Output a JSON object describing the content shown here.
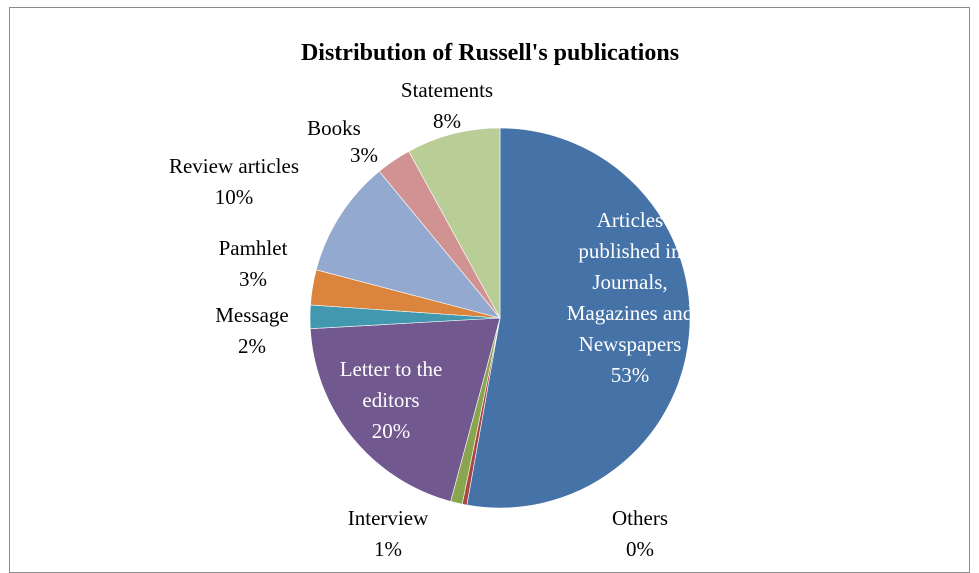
{
  "chart_data": {
    "type": "pie",
    "title": "Distribution of Russell's publications",
    "slices": [
      {
        "name": "Articles published in Journals, Magazines and Newspapers",
        "label_lines": [
          "Articles",
          "published in",
          "Journals,",
          "Magazines and",
          "Newspapers"
        ],
        "value": 53,
        "pct_label": "53%",
        "color": "#4572a7"
      },
      {
        "name": "Others",
        "label_lines": [
          "Others"
        ],
        "value": 0.4,
        "pct_label": "0%",
        "color": "#aa4643"
      },
      {
        "name": "Interview",
        "label_lines": [
          "Interview"
        ],
        "value": 1,
        "pct_label": "1%",
        "color": "#89a54e"
      },
      {
        "name": "Letter to the editors",
        "label_lines": [
          "Letter to the",
          "editors"
        ],
        "value": 20,
        "pct_label": "20%",
        "color": "#71588f"
      },
      {
        "name": "Message",
        "label_lines": [
          "Message"
        ],
        "value": 2,
        "pct_label": "2%",
        "color": "#4198af"
      },
      {
        "name": "Pamhlet",
        "label_lines": [
          "Pamhlet"
        ],
        "value": 3,
        "pct_label": "3%",
        "color": "#db843d"
      },
      {
        "name": "Review articles",
        "label_lines": [
          "Review articles"
        ],
        "value": 10,
        "pct_label": "10%",
        "color": "#93a9cf"
      },
      {
        "name": "Books",
        "label_lines": [
          "Books"
        ],
        "value": 3,
        "pct_label": "3%",
        "color": "#d19392"
      },
      {
        "name": "Statements",
        "label_lines": [
          "Statements"
        ],
        "value": 8,
        "pct_label": "8%",
        "color": "#b9cd96"
      }
    ]
  }
}
